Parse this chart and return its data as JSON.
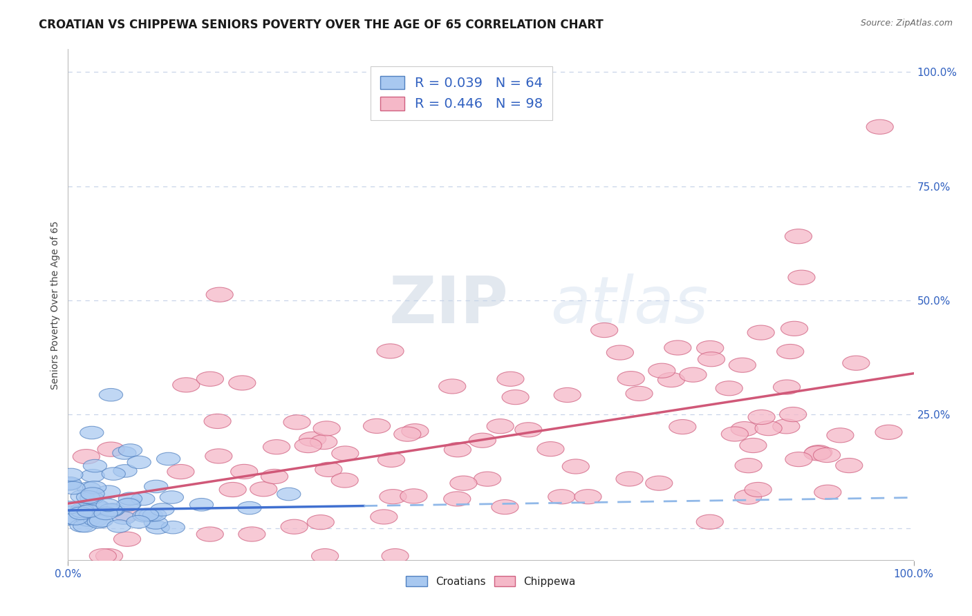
{
  "title": "CROATIAN VS CHIPPEWA SENIORS POVERTY OVER THE AGE OF 65 CORRELATION CHART",
  "source": "Source: ZipAtlas.com",
  "ylabel": "Seniors Poverty Over the Age of 65",
  "right_yticks": [
    0.0,
    0.25,
    0.5,
    0.75,
    1.0
  ],
  "right_yticklabels": [
    "",
    "25.0%",
    "50.0%",
    "75.0%",
    "100.0%"
  ],
  "croatian_R": 0.039,
  "croatian_N": 64,
  "chippewa_R": 0.446,
  "chippewa_N": 98,
  "croatian_color": "#a8c8f0",
  "chippewa_color": "#f5b8c8",
  "croatian_edge_color": "#5080c0",
  "chippewa_edge_color": "#d06080",
  "croatian_line_color": "#4070d0",
  "chippewa_line_color": "#d05878",
  "croatian_dash_color": "#90b8e8",
  "chippewa_dash_color": "#e090a8",
  "watermark_zip": "ZIP",
  "watermark_atlas": "atlas",
  "background_color": "#ffffff",
  "grid_color": "#c8d4e8",
  "xlim": [
    0.0,
    1.0
  ],
  "ylim": [
    -0.07,
    1.05
  ],
  "title_fontsize": 12,
  "axis_label_fontsize": 10,
  "tick_fontsize": 11,
  "legend_fontsize": 14
}
